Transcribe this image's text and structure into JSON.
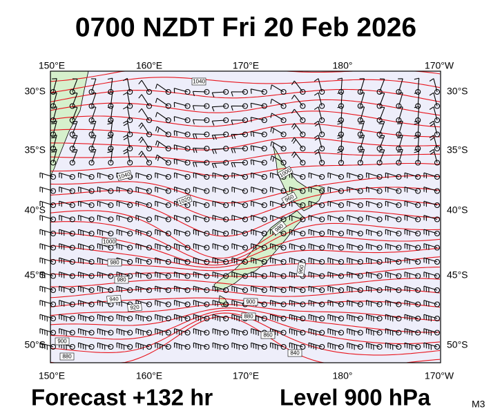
{
  "header": {
    "title": "0700 NZDT Fri 20 Feb 2026"
  },
  "footer": {
    "forecast": "Forecast +132 hr",
    "level": "Level 900 hPa",
    "model": "M3"
  },
  "axes": {
    "lon": [
      "150°E",
      "160°E",
      "170°E",
      "180°",
      "170°W"
    ],
    "lat": [
      "30°S",
      "35°S",
      "40°S",
      "45°S",
      "50°S"
    ]
  },
  "contour_labels": [
    "1040",
    "1040",
    "1020",
    "1000",
    "980",
    "980",
    "940",
    "920",
    "900",
    "880",
    "1000",
    "960",
    "980",
    "960",
    "900",
    "880",
    "860",
    "840"
  ]
}
